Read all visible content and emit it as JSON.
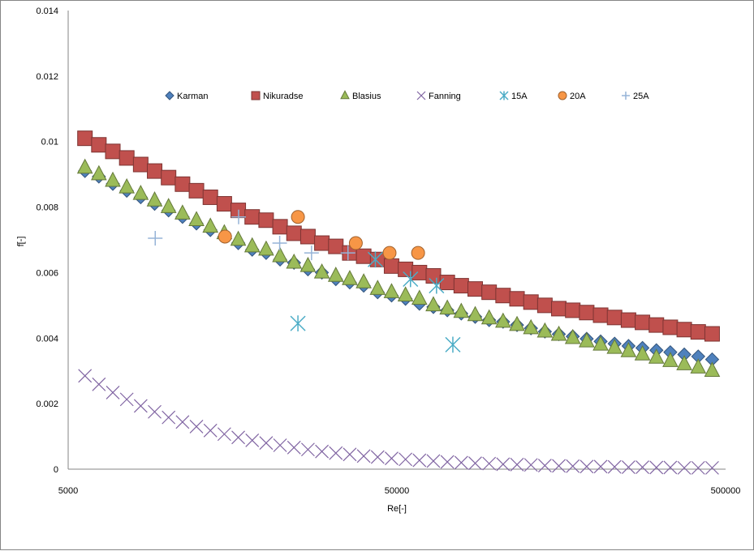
{
  "chart_data": {
    "type": "scatter",
    "xlabel": "Re[-]",
    "ylabel": "f[-]",
    "xscale": "log",
    "xlim": [
      5000,
      500000
    ],
    "ylim": [
      0,
      0.014
    ],
    "x_ticks": [
      "5000",
      "50000",
      "500000"
    ],
    "y_ticks": [
      "0",
      "0.002",
      "0.004",
      "0.006",
      "0.008",
      "0.01",
      "0.012",
      "0.014"
    ],
    "grid": false,
    "legend_position": "top",
    "series": [
      {
        "name": "Karman",
        "marker": "diamond",
        "color": "#4f81bd",
        "x": [
          5624,
          6200,
          6836,
          7537,
          8310,
          9162,
          10102,
          11138,
          12280,
          13539,
          14928,
          16459,
          18147,
          20008,
          22060,
          24322,
          26817,
          29567,
          32600,
          35943,
          39630,
          43694,
          48175,
          53116,
          58564,
          64570,
          71193,
          78494,
          86545,
          95421,
          105207,
          115997,
          127894,
          141011,
          155473,
          171419,
          188999,
          208383,
          229755,
          253318,
          279299,
          307944,
          339527,
          374349,
          412742,
          455073
        ],
        "y": [
          0.0091,
          0.00893,
          0.00871,
          0.0085,
          0.0083,
          0.0081,
          0.0079,
          0.0077,
          0.0075,
          0.0073,
          0.0071,
          0.0069,
          0.0067,
          0.0066,
          0.0064,
          0.0063,
          0.0061,
          0.006,
          0.0058,
          0.0057,
          0.0056,
          0.0054,
          0.0053,
          0.0052,
          0.00505,
          0.00495,
          0.00485,
          0.00475,
          0.00465,
          0.00455,
          0.0045,
          0.0044,
          0.0043,
          0.0042,
          0.00412,
          0.00405,
          0.00398,
          0.0039,
          0.00383,
          0.00376,
          0.0037,
          0.00363,
          0.00357,
          0.0035,
          0.00344,
          0.00335
        ]
      },
      {
        "name": "Nikuradse",
        "marker": "square",
        "color": "#c0504d",
        "x": [
          5624,
          6200,
          6836,
          7537,
          8310,
          9162,
          10102,
          11138,
          12280,
          13539,
          14928,
          16459,
          18147,
          20008,
          22060,
          24322,
          26817,
          29567,
          32600,
          35943,
          39630,
          43694,
          48175,
          53116,
          58564,
          64570,
          71193,
          78494,
          86545,
          95421,
          105207,
          115997,
          127894,
          141011,
          155473,
          171419,
          188999,
          208383,
          229755,
          253318,
          279299,
          307944,
          339527,
          374349,
          412742,
          455073
        ],
        "y": [
          0.0101,
          0.0099,
          0.0097,
          0.0095,
          0.0093,
          0.0091,
          0.0089,
          0.0087,
          0.0085,
          0.0083,
          0.0081,
          0.0079,
          0.0077,
          0.0076,
          0.0074,
          0.0072,
          0.0071,
          0.0069,
          0.0068,
          0.0066,
          0.0065,
          0.0064,
          0.0062,
          0.0061,
          0.006,
          0.0059,
          0.0057,
          0.0056,
          0.0055,
          0.0054,
          0.0053,
          0.0052,
          0.0051,
          0.005,
          0.0049,
          0.00485,
          0.00478,
          0.0047,
          0.00463,
          0.00455,
          0.00448,
          0.0044,
          0.00433,
          0.00426,
          0.00419,
          0.00413
        ]
      },
      {
        "name": "Blasius",
        "marker": "triangle",
        "color": "#9bbb59",
        "x": [
          5624,
          6200,
          6836,
          7537,
          8310,
          9162,
          10102,
          11138,
          12280,
          13539,
          14928,
          16459,
          18147,
          20008,
          22060,
          24322,
          26817,
          29567,
          32600,
          35943,
          39630,
          43694,
          48175,
          53116,
          58564,
          64570,
          71193,
          78494,
          86545,
          95421,
          105207,
          115997,
          127894,
          141011,
          155473,
          171419,
          188999,
          208383,
          229755,
          253318,
          279299,
          307944,
          339527,
          374349,
          412742,
          455073
        ],
        "y": [
          0.0092,
          0.009,
          0.0088,
          0.0086,
          0.0084,
          0.0082,
          0.008,
          0.0078,
          0.0076,
          0.0074,
          0.0072,
          0.007,
          0.0068,
          0.0067,
          0.0065,
          0.0063,
          0.0062,
          0.006,
          0.0059,
          0.0058,
          0.0057,
          0.0055,
          0.0054,
          0.0053,
          0.0052,
          0.005,
          0.0049,
          0.0048,
          0.0047,
          0.0046,
          0.0045,
          0.0044,
          0.0043,
          0.0042,
          0.0041,
          0.004,
          0.0039,
          0.0038,
          0.0037,
          0.0036,
          0.0035,
          0.0034,
          0.0033,
          0.0032,
          0.0031,
          0.003
        ]
      },
      {
        "name": "Fanning",
        "marker": "x",
        "color": "#8064a2",
        "x": [
          5624,
          6200,
          6836,
          7537,
          8310,
          9162,
          10102,
          11138,
          12280,
          13539,
          14928,
          16459,
          18147,
          20008,
          22060,
          24322,
          26817,
          29567,
          32600,
          35943,
          39630,
          43694,
          48175,
          53116,
          58564,
          64570,
          71193,
          78494,
          86545,
          95421,
          105207,
          115997,
          127894,
          141011,
          155473,
          171419,
          188999,
          208383,
          229755,
          253318,
          279299,
          307944,
          339527,
          374349,
          412742,
          455073
        ],
        "y": [
          0.00285,
          0.00259,
          0.00234,
          0.00213,
          0.00193,
          0.00175,
          0.00158,
          0.00144,
          0.0013,
          0.00118,
          0.00107,
          0.00097,
          0.00088,
          0.0008,
          0.00073,
          0.00066,
          0.0006,
          0.00054,
          0.00049,
          0.00045,
          0.0004,
          0.00037,
          0.00033,
          0.0003,
          0.00027,
          0.00025,
          0.00022,
          0.0002,
          0.00018,
          0.00017,
          0.00015,
          0.00014,
          0.00013,
          0.00011,
          0.0001,
          9e-05,
          8e-05,
          8e-05,
          7e-05,
          6e-05,
          6e-05,
          5e-05,
          5e-05,
          4e-05,
          4e-05,
          4e-05
        ]
      },
      {
        "name": "15A",
        "marker": "asterisk",
        "color": "#4bacc6",
        "x": [
          25000,
          43000,
          55000,
          66000,
          74000
        ],
        "y": [
          0.00445,
          0.0064,
          0.0058,
          0.0056,
          0.0038
        ]
      },
      {
        "name": "20A",
        "marker": "circle",
        "color": "#f79646",
        "x": [
          15000,
          25000,
          37500,
          47500,
          58000
        ],
        "y": [
          0.0071,
          0.0077,
          0.0069,
          0.0066,
          0.0066
        ]
      },
      {
        "name": "25A",
        "marker": "plus",
        "color": "#95b3d7",
        "x": [
          9200,
          16500,
          22000,
          27500,
          35500
        ],
        "y": [
          0.00705,
          0.0077,
          0.0069,
          0.0066,
          0.0066
        ]
      }
    ]
  }
}
